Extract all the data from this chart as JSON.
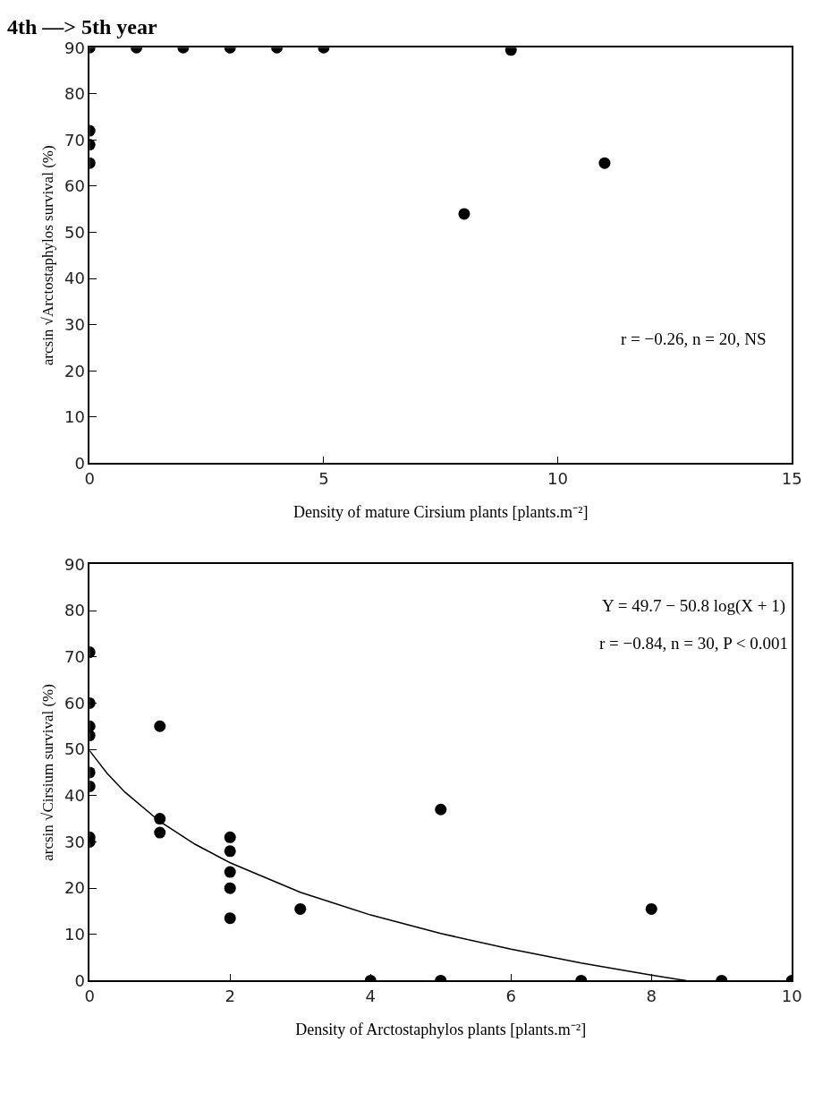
{
  "chart_data": [
    {
      "type": "scatter",
      "title": "4th —> 5th year",
      "xlabel": "Density of mature Cirsium plants [plants.m⁻²]",
      "ylabel": "arcsin √Arctostaphylos survival (%)",
      "annotations": [
        "r = −0.26, n = 20, NS"
      ],
      "xlim": [
        0,
        15
      ],
      "xticks": [
        0,
        5,
        10,
        15
      ],
      "ylim": [
        0,
        90
      ],
      "yticks": [
        0,
        10,
        20,
        30,
        40,
        50,
        60,
        70,
        80,
        90
      ],
      "marker": "circle",
      "series": [
        {
          "color": "#000000",
          "x": [
            0,
            1,
            2,
            3,
            4,
            5,
            9,
            0,
            0,
            0,
            8,
            11
          ],
          "values": [
            90,
            90,
            90,
            90,
            90,
            90,
            89.5,
            72,
            69,
            65,
            54,
            65
          ]
        }
      ]
    },
    {
      "type": "scatter",
      "xlabel": "Density of Arctostaphylos plants [plants.m⁻²]",
      "ylabel": "arcsin √Cirsium survival (%)",
      "annotations": [
        "Y = 49.7 − 50.8 log(X + 1)",
        "r = −0.84, n = 30, P < 0.001"
      ],
      "xlim": [
        0,
        10
      ],
      "xticks": [
        0,
        2,
        4,
        6,
        8,
        10
      ],
      "ylim": [
        0,
        90
      ],
      "yticks": [
        0,
        10,
        20,
        30,
        40,
        50,
        60,
        70,
        80,
        90
      ],
      "marker": "circle",
      "series": [
        {
          "color": "#000000",
          "x": [
            0,
            0,
            0,
            0,
            0,
            0,
            0,
            0,
            1,
            1,
            1,
            2,
            2,
            2,
            2,
            2,
            3,
            4,
            5,
            5,
            7,
            8,
            9,
            10
          ],
          "values": [
            71,
            60,
            55,
            53,
            45,
            42,
            31,
            30,
            55,
            35,
            32,
            31,
            28,
            23.5,
            20,
            13.5,
            15.5,
            0,
            0,
            37,
            0,
            15.5,
            0,
            0
          ]
        },
        {
          "type": "line",
          "color": "#000000",
          "marker": "none",
          "line_style": "solid",
          "x": [
            0,
            0.25,
            0.5,
            1,
            1.5,
            2,
            3,
            4,
            5,
            6,
            7,
            8,
            8.5
          ],
          "values": [
            49.7,
            44.8,
            40.8,
            34.4,
            29.5,
            25.5,
            19.1,
            14.2,
            10.2,
            6.8,
            3.8,
            1.2,
            0
          ]
        }
      ]
    }
  ]
}
